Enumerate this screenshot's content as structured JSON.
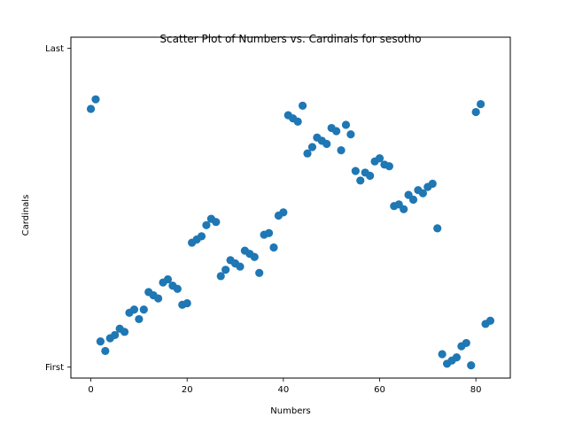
{
  "chart_data": {
    "type": "scatter",
    "title": "Scatter Plot of Numbers vs. Cardinals for sesotho",
    "xlabel": "Numbers",
    "ylabel": "Cardinals",
    "xlim": [
      -4.15,
      87.15
    ],
    "ylim": [
      -0.035,
      1.035
    ],
    "xticks": [
      0,
      20,
      40,
      60,
      80
    ],
    "yticks": [
      {
        "value": 0,
        "label": "First"
      },
      {
        "value": 1,
        "label": "Last"
      }
    ],
    "grid": false,
    "legend": "none",
    "marker_color": "#1f77b4",
    "series": [
      {
        "x": [
          0,
          1,
          2,
          3,
          4,
          5,
          6,
          7,
          8,
          9,
          10,
          11,
          12,
          13,
          14,
          15,
          16,
          17,
          18,
          19,
          20,
          21,
          22,
          23,
          24,
          25,
          26,
          27,
          28,
          29,
          30,
          31,
          32,
          33,
          34,
          35,
          36,
          37,
          38,
          39,
          40,
          41,
          42,
          43,
          44,
          45,
          46,
          47,
          48,
          49,
          50,
          51,
          52,
          53,
          54,
          55,
          56,
          57,
          58,
          59,
          60,
          61,
          62,
          63,
          64,
          65,
          66,
          67,
          68,
          69,
          70,
          71,
          72,
          73,
          74,
          75,
          76,
          77,
          78,
          79,
          80,
          81,
          82,
          83
        ],
        "y": [
          0.81,
          0.84,
          0.08,
          0.05,
          0.09,
          0.1,
          0.12,
          0.11,
          0.17,
          0.18,
          0.15,
          0.18,
          0.235,
          0.225,
          0.215,
          0.265,
          0.275,
          0.255,
          0.245,
          0.195,
          0.2,
          0.39,
          0.4,
          0.41,
          0.445,
          0.465,
          0.455,
          0.285,
          0.305,
          0.335,
          0.325,
          0.315,
          0.365,
          0.355,
          0.345,
          0.295,
          0.415,
          0.42,
          0.375,
          0.475,
          0.485,
          0.79,
          0.78,
          0.77,
          0.82,
          0.67,
          0.69,
          0.72,
          0.71,
          0.7,
          0.75,
          0.74,
          0.68,
          0.76,
          0.73,
          0.615,
          0.585,
          0.61,
          0.6,
          0.645,
          0.655,
          0.635,
          0.63,
          0.505,
          0.51,
          0.495,
          0.54,
          0.525,
          0.555,
          0.545,
          0.565,
          0.575,
          0.435,
          0.04,
          0.01,
          0.02,
          0.03,
          0.065,
          0.075,
          0.005,
          0.8,
          0.825,
          0.135,
          0.145
        ]
      }
    ]
  }
}
